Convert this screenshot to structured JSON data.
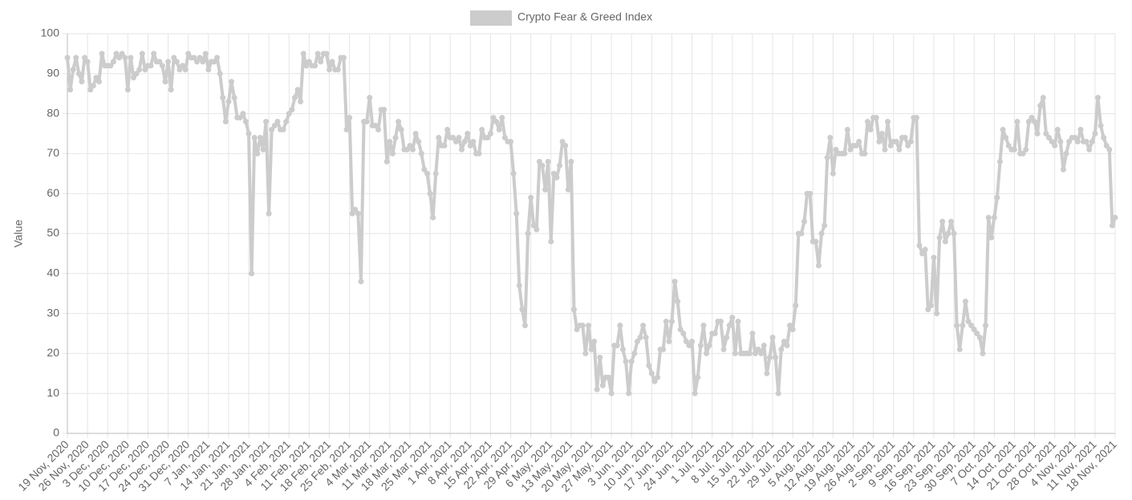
{
  "chart_data": {
    "type": "line",
    "y_label": "Value",
    "grid": true,
    "legend": "top",
    "categories": [
      "19 Nov, 2020",
      null,
      null,
      null,
      null,
      null,
      null,
      "26 Nov, 2020",
      null,
      null,
      null,
      null,
      null,
      null,
      "3 Dec, 2020",
      null,
      null,
      null,
      null,
      null,
      null,
      "10 Dec, 2020",
      null,
      null,
      null,
      null,
      null,
      null,
      "17 Dec, 2020",
      null,
      null,
      null,
      null,
      null,
      null,
      "24 Dec, 2020",
      null,
      null,
      null,
      null,
      null,
      null,
      "31 Dec, 2020",
      null,
      null,
      null,
      null,
      null,
      null,
      "7 Jan, 2021",
      null,
      null,
      null,
      null,
      null,
      null,
      "14 Jan, 2021",
      null,
      null,
      null,
      null,
      null,
      null,
      "21 Jan, 2021",
      null,
      null,
      null,
      null,
      null,
      null,
      "28 Jan, 2021",
      null,
      null,
      null,
      null,
      null,
      null,
      "4 Feb, 2021",
      null,
      null,
      null,
      null,
      null,
      null,
      "11 Feb, 2021",
      null,
      null,
      null,
      null,
      null,
      null,
      "18 Feb, 2021",
      null,
      null,
      null,
      null,
      null,
      null,
      "25 Feb, 2021",
      null,
      null,
      null,
      null,
      null,
      null,
      "4 Mar, 2021",
      null,
      null,
      null,
      null,
      null,
      null,
      "11 Mar, 2021",
      null,
      null,
      null,
      null,
      null,
      null,
      "18 Mar, 2021",
      null,
      null,
      null,
      null,
      null,
      null,
      "25 Mar, 2021",
      null,
      null,
      null,
      null,
      null,
      null,
      "1 Apr, 2021",
      null,
      null,
      null,
      null,
      null,
      null,
      "8 Apr, 2021",
      null,
      null,
      null,
      null,
      null,
      null,
      "15 Apr, 2021",
      null,
      null,
      null,
      null,
      null,
      null,
      "22 Apr, 2021",
      null,
      null,
      null,
      null,
      null,
      null,
      "29 Apr, 2021",
      null,
      null,
      null,
      null,
      null,
      null,
      "6 May, 2021",
      null,
      null,
      null,
      null,
      null,
      null,
      "13 May, 2021",
      null,
      null,
      null,
      null,
      null,
      null,
      "20 May, 2021",
      null,
      null,
      null,
      null,
      null,
      null,
      "27 May, 2021",
      null,
      null,
      null,
      null,
      null,
      null,
      "3 Jun, 2021",
      null,
      null,
      null,
      null,
      null,
      null,
      "10 Jun, 2021",
      null,
      null,
      null,
      null,
      null,
      null,
      "17 Jun, 2021",
      null,
      null,
      null,
      null,
      null,
      null,
      "24 Jun, 2021",
      null,
      null,
      null,
      null,
      null,
      null,
      "1 Jul, 2021",
      null,
      null,
      null,
      null,
      null,
      null,
      "8 Jul, 2021",
      null,
      null,
      null,
      null,
      null,
      null,
      "15 Jul, 2021",
      null,
      null,
      null,
      null,
      null,
      null,
      "22 Jul, 2021",
      null,
      null,
      null,
      null,
      null,
      null,
      "29 Jul, 2021",
      null,
      null,
      null,
      null,
      null,
      null,
      "5 Aug, 2021",
      null,
      null,
      null,
      null,
      null,
      null,
      "12 Aug, 2021",
      null,
      null,
      null,
      null,
      null,
      null,
      "19 Aug, 2021",
      null,
      null,
      null,
      null,
      null,
      null,
      "26 Aug, 2021",
      null,
      null,
      null,
      null,
      null,
      null,
      "2 Sep, 2021",
      null,
      null,
      null,
      null,
      null,
      null,
      "9 Sep, 2021",
      null,
      null,
      null,
      null,
      null,
      null,
      "16 Sep, 2021",
      null,
      null,
      null,
      null,
      null,
      null,
      "23 Sep, 2021",
      null,
      null,
      null,
      null,
      null,
      null,
      "30 Sep, 2021",
      null,
      null,
      null,
      null,
      null,
      null,
      "7 Oct, 2021",
      null,
      null,
      null,
      null,
      null,
      null,
      "14 Oct, 2021",
      null,
      null,
      null,
      null,
      null,
      null,
      "21 Oct, 2021",
      null,
      null,
      null,
      null,
      null,
      null,
      "28 Oct, 2021",
      null,
      null,
      null,
      null,
      null,
      null,
      "4 Nov, 2021",
      null,
      null,
      null,
      null,
      null,
      null,
      "11 Nov, 2021",
      null,
      null,
      null,
      null,
      null,
      null,
      "18 Nov, 2021"
    ],
    "series": [
      {
        "name": "Crypto Fear & Greed Index",
        "color": "#cccccc",
        "values": [
          94,
          86,
          91,
          94,
          90,
          88,
          94,
          93,
          86,
          87,
          89,
          88,
          95,
          92,
          92,
          92,
          93,
          95,
          94,
          95,
          94,
          86,
          94,
          89,
          90,
          91,
          95,
          91,
          92,
          92,
          95,
          93,
          93,
          92,
          88,
          93,
          86,
          94,
          93,
          91,
          92,
          91,
          95,
          94,
          94,
          93,
          94,
          93,
          95,
          91,
          93,
          93,
          94,
          90,
          84,
          78,
          83,
          88,
          84,
          79,
          79,
          80,
          78,
          75,
          40,
          74,
          70,
          74,
          71,
          78,
          55,
          76,
          77,
          78,
          76,
          76,
          78,
          80,
          81,
          84,
          86,
          83,
          95,
          92,
          93,
          92,
          92,
          95,
          93,
          95,
          95,
          91,
          93,
          91,
          91,
          94,
          94,
          76,
          79,
          55,
          56,
          55,
          38,
          78,
          78,
          84,
          77,
          77,
          76,
          81,
          81,
          68,
          73,
          70,
          74,
          78,
          76,
          71,
          71,
          72,
          71,
          75,
          73,
          70,
          66,
          65,
          60,
          54,
          65,
          74,
          72,
          72,
          76,
          74,
          74,
          73,
          74,
          71,
          73,
          75,
          72,
          73,
          70,
          70,
          76,
          74,
          74,
          75,
          79,
          78,
          76,
          79,
          74,
          73,
          73,
          65,
          55,
          37,
          31,
          27,
          50,
          59,
          52,
          51,
          68,
          67,
          61,
          68,
          48,
          65,
          64,
          67,
          73,
          72,
          61,
          68,
          31,
          26,
          27,
          27,
          20,
          27,
          21,
          23,
          11,
          19,
          12,
          14,
          14,
          10,
          22,
          22,
          27,
          21,
          18,
          10,
          18,
          20,
          23,
          24,
          27,
          24,
          17,
          15,
          13,
          14,
          21,
          21,
          28,
          23,
          28,
          38,
          33,
          26,
          25,
          23,
          22,
          23,
          10,
          14,
          22,
          27,
          20,
          22,
          25,
          25,
          28,
          28,
          21,
          24,
          27,
          29,
          20,
          28,
          20,
          20,
          20,
          20,
          25,
          20,
          21,
          20,
          22,
          15,
          19,
          24,
          19,
          10,
          21,
          23,
          22,
          27,
          26,
          32,
          50,
          50,
          53,
          60,
          60,
          48,
          48,
          42,
          50,
          52,
          69,
          74,
          65,
          71,
          70,
          70,
          70,
          76,
          71,
          72,
          72,
          73,
          70,
          70,
          78,
          76,
          79,
          79,
          73,
          75,
          71,
          78,
          72,
          73,
          73,
          71,
          74,
          74,
          72,
          73,
          79,
          79,
          47,
          45,
          46,
          31,
          32,
          44,
          30,
          49,
          53,
          48,
          50,
          53,
          50,
          27,
          21,
          27,
          33,
          28,
          27,
          26,
          25,
          24,
          20,
          27,
          54,
          49,
          54,
          59,
          68,
          76,
          74,
          72,
          71,
          71,
          78,
          70,
          70,
          71,
          78,
          79,
          78,
          75,
          82,
          84,
          75,
          74,
          73,
          72,
          76,
          73,
          66,
          70,
          73,
          74,
          74,
          73,
          76,
          73,
          73,
          71,
          73,
          75,
          84,
          77,
          74,
          72,
          71,
          52,
          54
        ]
      }
    ],
    "ylim": [
      0,
      100
    ],
    "yticks": [
      0,
      10,
      20,
      30,
      40,
      50,
      60,
      70,
      80,
      90,
      100
    ]
  }
}
